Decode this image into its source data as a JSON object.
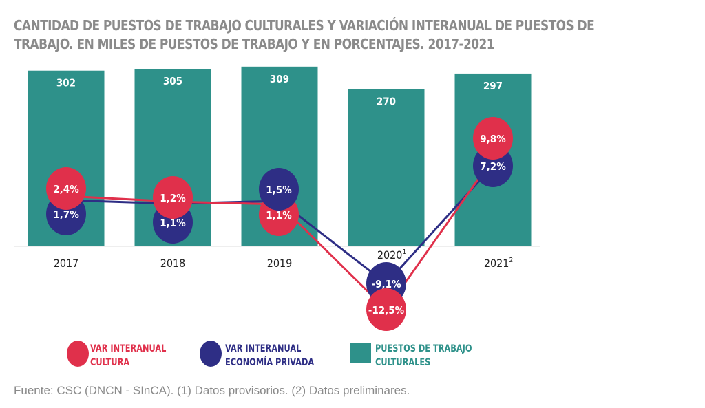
{
  "chart_data": {
    "type": "bar",
    "title": "CANTIDAD DE PUESTOS DE TRABAJO CULTURALES Y VARIACIÓN INTERANUAL DE PUESTOS DE TRABAJO. EN MILES DE PUESTOS DE TRABAJO Y EN PORCENTAJES. 2017-2021",
    "categories": [
      "2017",
      "2018",
      "2019",
      "2020",
      "2021"
    ],
    "category_superscripts": [
      "",
      "",
      "",
      "1",
      "2"
    ],
    "series": [
      {
        "name": "PUESTOS DE TRABAJO CULTURALES",
        "type": "bar",
        "values": [
          302,
          305,
          309,
          270,
          297
        ],
        "labels": [
          "302",
          "305",
          "309",
          "270",
          "297"
        ],
        "color": "#2e918a"
      },
      {
        "name": "VAR INTERANUAL CULTURA",
        "type": "line",
        "values": [
          2.4,
          1.2,
          1.1,
          -12.5,
          9.8
        ],
        "labels": [
          "2,4%",
          "1,2%",
          "1,1%",
          "-12,5%",
          "9,8%"
        ],
        "color": "#e0304b"
      },
      {
        "name": "VAR INTERANUAL ECONOMÍA PRIVADA",
        "type": "line",
        "values": [
          1.7,
          1.1,
          1.5,
          -9.1,
          7.2
        ],
        "labels": [
          "1,7%",
          "1,1%",
          "1,5%",
          "-9,1%",
          "7,2%"
        ],
        "color": "#2e2e85"
      }
    ],
    "legend_position": "bottom",
    "grid": false
  },
  "legend": {
    "cultura": "VAR INTERANUAL CULTURA",
    "privada": "VAR INTERANUAL ECONOMÍA PRIVADA",
    "puestos": "PUESTOS DE TRABAJO CULTURALES"
  },
  "source": "Fuente: CSC (DNCN - SInCA). (1) Datos provisorios. (2) Datos preliminares."
}
